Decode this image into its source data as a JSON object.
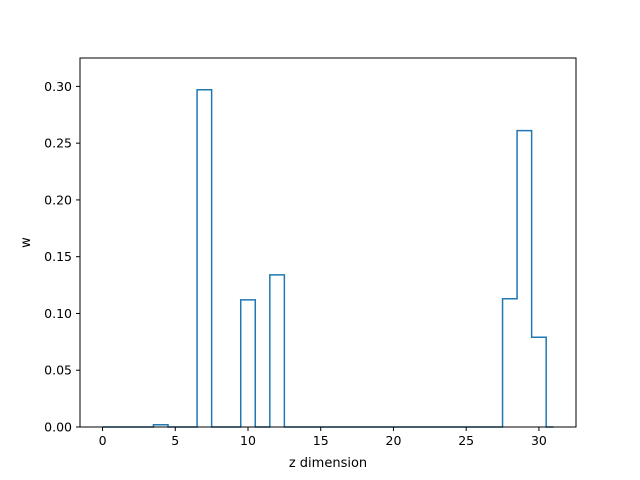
{
  "chart_data": {
    "type": "step",
    "title": "",
    "xlabel": "z dimension",
    "ylabel": "w",
    "xlim": [
      -1.55,
      32.55
    ],
    "ylim": [
      0,
      0.325
    ],
    "x_ticks": [
      0,
      5,
      10,
      15,
      20,
      25,
      30
    ],
    "y_ticks": [
      0.0,
      0.05,
      0.1,
      0.15,
      0.2,
      0.25,
      0.3
    ],
    "y_tick_labels": [
      "0.00",
      "0.05",
      "0.10",
      "0.15",
      "0.20",
      "0.25",
      "0.30"
    ],
    "grid": false,
    "line_color": "#1f77b4",
    "series": [
      {
        "x": [
          0,
          1,
          2,
          3,
          4,
          5,
          6,
          7,
          8,
          9,
          10,
          11,
          12,
          13,
          14,
          15,
          16,
          17,
          18,
          19,
          20,
          21,
          22,
          23,
          24,
          25,
          26,
          27,
          28,
          29,
          30,
          31
        ],
        "values": [
          0,
          0,
          0,
          0,
          0.002,
          0,
          0,
          0.297,
          0,
          0,
          0.112,
          0,
          0.134,
          0,
          0,
          0,
          0,
          0,
          0,
          0,
          0,
          0,
          0,
          0,
          0,
          0,
          0,
          0,
          0.113,
          0.261,
          0.079,
          0
        ]
      }
    ]
  }
}
